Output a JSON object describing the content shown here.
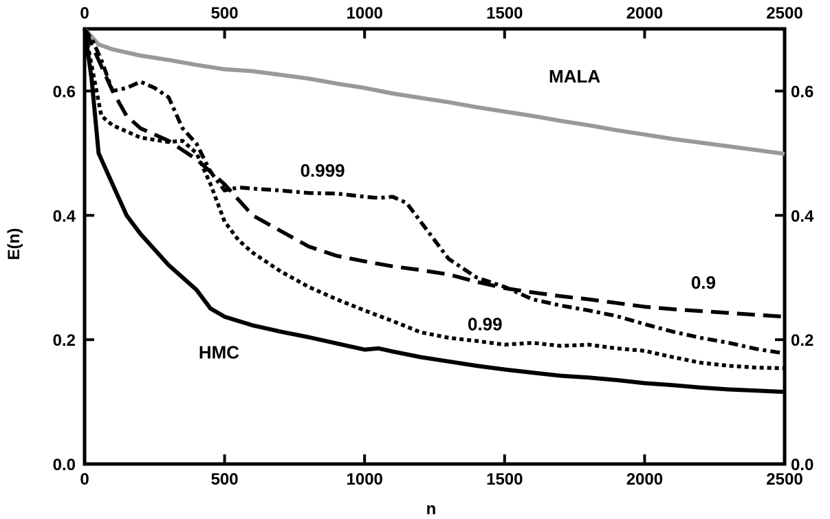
{
  "chart_data": {
    "type": "line",
    "title": "",
    "xlabel": "n",
    "ylabel": "E(n)",
    "xlim": [
      0,
      2500
    ],
    "ylim": [
      0.0,
      0.7
    ],
    "x_ticks": [
      0,
      500,
      1000,
      1500,
      2000,
      2500
    ],
    "y_ticks": [
      0.0,
      0.2,
      0.4,
      0.6
    ],
    "x_tick_labels": [
      "0",
      "500",
      "1000",
      "1500",
      "2000",
      "2500"
    ],
    "y_tick_labels": [
      "0.0",
      "0.2",
      "0.4",
      "0.6"
    ],
    "grid": false,
    "legend": "none",
    "series": [
      {
        "name": "MALA",
        "color": "#999999",
        "style": "solid",
        "x": [
          0,
          50,
          100,
          200,
          300,
          400,
          500,
          600,
          700,
          800,
          900,
          1000,
          1100,
          1200,
          1300,
          1400,
          1500,
          1600,
          1700,
          1800,
          1900,
          2000,
          2100,
          2200,
          2300,
          2400,
          2500
        ],
        "y": [
          0.7,
          0.675,
          0.667,
          0.657,
          0.65,
          0.642,
          0.635,
          0.632,
          0.626,
          0.62,
          0.612,
          0.605,
          0.596,
          0.589,
          0.582,
          0.574,
          0.567,
          0.56,
          0.552,
          0.545,
          0.537,
          0.53,
          0.523,
          0.517,
          0.511,
          0.505,
          0.499
        ]
      },
      {
        "name": "HMC",
        "color": "#000000",
        "style": "solid",
        "x": [
          0,
          25,
          50,
          100,
          150,
          200,
          300,
          400,
          450,
          500,
          600,
          700,
          800,
          900,
          1000,
          1050,
          1100,
          1200,
          1300,
          1400,
          1500,
          1600,
          1700,
          1800,
          1900,
          2000,
          2100,
          2200,
          2300,
          2400,
          2500
        ],
        "y": [
          0.7,
          0.62,
          0.5,
          0.45,
          0.4,
          0.37,
          0.32,
          0.28,
          0.25,
          0.237,
          0.223,
          0.213,
          0.204,
          0.194,
          0.184,
          0.186,
          0.181,
          0.172,
          0.165,
          0.158,
          0.152,
          0.147,
          0.142,
          0.139,
          0.135,
          0.13,
          0.127,
          0.123,
          0.12,
          0.118,
          0.116
        ]
      },
      {
        "name": "0.9",
        "color": "#000000",
        "style": "long-dash",
        "x": [
          0,
          30,
          60,
          100,
          150,
          200,
          300,
          400,
          500,
          600,
          700,
          800,
          900,
          1000,
          1100,
          1200,
          1300,
          1400,
          1500,
          1600,
          1700,
          1800,
          1900,
          2000,
          2100,
          2200,
          2300,
          2400,
          2500
        ],
        "y": [
          0.7,
          0.67,
          0.64,
          0.6,
          0.56,
          0.54,
          0.52,
          0.49,
          0.45,
          0.4,
          0.375,
          0.35,
          0.335,
          0.326,
          0.318,
          0.312,
          0.305,
          0.293,
          0.283,
          0.276,
          0.27,
          0.265,
          0.259,
          0.253,
          0.249,
          0.246,
          0.243,
          0.24,
          0.237
        ]
      },
      {
        "name": "0.99",
        "color": "#000000",
        "style": "short-dash",
        "x": [
          0,
          30,
          60,
          100,
          150,
          200,
          300,
          350,
          400,
          450,
          500,
          550,
          600,
          700,
          800,
          900,
          1000,
          1100,
          1200,
          1300,
          1400,
          1500,
          1600,
          1700,
          1800,
          1900,
          2000,
          2100,
          2200,
          2300,
          2400,
          2500
        ],
        "y": [
          0.7,
          0.63,
          0.56,
          0.545,
          0.535,
          0.525,
          0.518,
          0.52,
          0.5,
          0.45,
          0.39,
          0.36,
          0.34,
          0.31,
          0.285,
          0.265,
          0.247,
          0.23,
          0.212,
          0.203,
          0.198,
          0.192,
          0.195,
          0.19,
          0.192,
          0.186,
          0.182,
          0.172,
          0.163,
          0.158,
          0.155,
          0.154
        ]
      },
      {
        "name": "0.999",
        "color": "#000000",
        "style": "dash-dot",
        "x": [
          0,
          30,
          60,
          100,
          150,
          200,
          250,
          300,
          350,
          400,
          450,
          500,
          550,
          600,
          700,
          800,
          900,
          1000,
          1050,
          1100,
          1150,
          1200,
          1300,
          1400,
          1500,
          1600,
          1700,
          1800,
          1900,
          2000,
          2100,
          2200,
          2300,
          2400,
          2500
        ],
        "y": [
          0.7,
          0.68,
          0.65,
          0.6,
          0.605,
          0.615,
          0.605,
          0.59,
          0.54,
          0.515,
          0.47,
          0.44,
          0.445,
          0.443,
          0.44,
          0.436,
          0.435,
          0.43,
          0.428,
          0.43,
          0.42,
          0.39,
          0.33,
          0.3,
          0.285,
          0.265,
          0.255,
          0.247,
          0.238,
          0.225,
          0.213,
          0.203,
          0.195,
          0.185,
          0.178
        ]
      }
    ],
    "annotations": [
      {
        "text": "MALA",
        "x": 1750,
        "y": 0.614
      },
      {
        "text": "0.999",
        "x": 850,
        "y": 0.462
      },
      {
        "text": "0.9",
        "x": 2210,
        "y": 0.282
      },
      {
        "text": "0.99",
        "x": 1430,
        "y": 0.215
      },
      {
        "text": "HMC",
        "x": 480,
        "y": 0.17
      }
    ]
  }
}
